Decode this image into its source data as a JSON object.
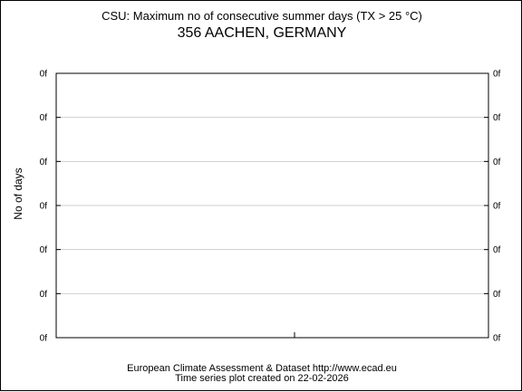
{
  "chart_data": {
    "type": "line",
    "title": "CSU: Maximum no of consecutive summer days (TX > 25 °C)",
    "subtitle": "356 AACHEN, GERMANY",
    "ylabel": "No of days",
    "y_tick_labels": [
      "0f",
      "0f",
      "0f",
      "0f",
      "0f",
      "0f",
      "0f"
    ],
    "series": [],
    "grid": true
  },
  "footer": {
    "line1": "European Climate Assessment & Dataset  http://www.ecad.eu",
    "line2": "Time series plot created on 22-02-2026"
  }
}
